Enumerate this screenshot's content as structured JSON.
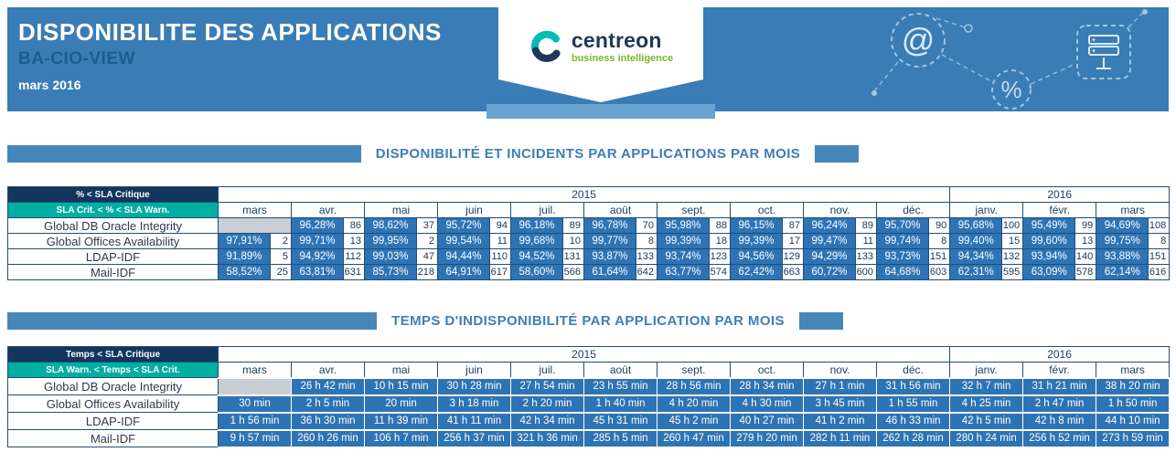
{
  "header": {
    "title": "DISPONIBILITE DES APPLICATIONS",
    "subtitle": "BA-CIO-VIEW",
    "period": "mars 2016",
    "logo": {
      "name": "centreon",
      "tagline": "business intelligence"
    }
  },
  "colors": {
    "header_blue": "#3a7cb5",
    "cell_blue": "#2e74b5",
    "legend_navy": "#14365e",
    "legend_teal": "#00afa2",
    "tagline_green": "#79b72d",
    "empty_gray": "#c9ced4"
  },
  "icons": [
    "at-icon",
    "percent-icon",
    "server-icon"
  ],
  "columns": {
    "years": [
      {
        "label": "2015",
        "months": [
          "mars",
          "avr.",
          "mai",
          "juin",
          "juil.",
          "août",
          "sept.",
          "oct.",
          "nov.",
          "déc."
        ]
      },
      {
        "label": "2016",
        "months": [
          "janv.",
          "févr.",
          "mars"
        ]
      }
    ]
  },
  "availability": {
    "section_title": "DISPONIBILITÉ ET INCIDENTS PAR APPLICATIONS PAR MOIS",
    "legend_critical": "% < SLA Critique",
    "legend_warning": "SLA Crit. < % < SLA Warn.",
    "rows": [
      {
        "label": "Global DB Oracle Integrity",
        "cells": [
          null,
          {
            "pct": "96,28%",
            "count": "86"
          },
          {
            "pct": "98,62%",
            "count": "37"
          },
          {
            "pct": "95,72%",
            "count": "94"
          },
          {
            "pct": "96,18%",
            "count": "89"
          },
          {
            "pct": "96,78%",
            "count": "70"
          },
          {
            "pct": "95,98%",
            "count": "88"
          },
          {
            "pct": "96,15%",
            "count": "87"
          },
          {
            "pct": "96,24%",
            "count": "89"
          },
          {
            "pct": "95,70%",
            "count": "90"
          },
          {
            "pct": "95,68%",
            "count": "100"
          },
          {
            "pct": "95,49%",
            "count": "99"
          },
          {
            "pct": "94,69%",
            "count": "108"
          }
        ]
      },
      {
        "label": "Global Offices Availability",
        "cells": [
          {
            "pct": "97,91%",
            "count": "2"
          },
          {
            "pct": "99,71%",
            "count": "13"
          },
          {
            "pct": "99,95%",
            "count": "2"
          },
          {
            "pct": "99,54%",
            "count": "11"
          },
          {
            "pct": "99,68%",
            "count": "10"
          },
          {
            "pct": "99,77%",
            "count": "8"
          },
          {
            "pct": "99,39%",
            "count": "18"
          },
          {
            "pct": "99,39%",
            "count": "17"
          },
          {
            "pct": "99,47%",
            "count": "11"
          },
          {
            "pct": "99,74%",
            "count": "8"
          },
          {
            "pct": "99,40%",
            "count": "15"
          },
          {
            "pct": "99,60%",
            "count": "13"
          },
          {
            "pct": "99,75%",
            "count": "8"
          }
        ]
      },
      {
        "label": "LDAP-IDF",
        "cells": [
          {
            "pct": "91,89%",
            "count": "5"
          },
          {
            "pct": "94,92%",
            "count": "112"
          },
          {
            "pct": "99,03%",
            "count": "47"
          },
          {
            "pct": "94,44%",
            "count": "110"
          },
          {
            "pct": "94,52%",
            "count": "131"
          },
          {
            "pct": "93,87%",
            "count": "133"
          },
          {
            "pct": "93,74%",
            "count": "123"
          },
          {
            "pct": "94,56%",
            "count": "129"
          },
          {
            "pct": "94,29%",
            "count": "133"
          },
          {
            "pct": "93,73%",
            "count": "151"
          },
          {
            "pct": "94,34%",
            "count": "132"
          },
          {
            "pct": "93,94%",
            "count": "140"
          },
          {
            "pct": "93,88%",
            "count": "151"
          }
        ]
      },
      {
        "label": "Mail-IDF",
        "cells": [
          {
            "pct": "58,52%",
            "count": "25"
          },
          {
            "pct": "63,81%",
            "count": "631"
          },
          {
            "pct": "85,73%",
            "count": "218"
          },
          {
            "pct": "64,91%",
            "count": "617"
          },
          {
            "pct": "58,60%",
            "count": "566"
          },
          {
            "pct": "61,64%",
            "count": "642"
          },
          {
            "pct": "63,77%",
            "count": "574"
          },
          {
            "pct": "62,42%",
            "count": "663"
          },
          {
            "pct": "60,72%",
            "count": "600"
          },
          {
            "pct": "64,68%",
            "count": "603"
          },
          {
            "pct": "62,31%",
            "count": "595"
          },
          {
            "pct": "63,09%",
            "count": "578"
          },
          {
            "pct": "62,14%",
            "count": "616"
          }
        ]
      }
    ]
  },
  "downtime": {
    "section_title": "TEMPS D'INDISPONIBILITÉ PAR APPLICATION PAR MOIS",
    "legend_critical": "Temps < SLA Critique",
    "legend_warning": "SLA Warn. < Temps < SLA Crit.",
    "rows": [
      {
        "label": "Global DB Oracle Integrity",
        "cells": [
          null,
          "26 h 42 min",
          "10 h 15 min",
          "30 h 28 min",
          "27 h 54 min",
          "23 h 55 min",
          "28 h 56 min",
          "28 h 34 min",
          "27 h 1 min",
          "31 h 56 min",
          "32 h 7 min",
          "31 h 21 min",
          "38 h 20 min"
        ]
      },
      {
        "label": "Global Offices Availability",
        "cells": [
          "30 min",
          "2 h 5 min",
          "20 min",
          "3 h 18 min",
          "2 h 20 min",
          "1 h 40 min",
          "4 h 20 min",
          "4 h 30 min",
          "3 h 45 min",
          "1 h 55 min",
          "4 h 25 min",
          "2 h 47 min",
          "1 h 50 min"
        ]
      },
      {
        "label": "LDAP-IDF",
        "cells": [
          "1 h 56 min",
          "36 h 30 min",
          "11 h 39 min",
          "41 h 11 min",
          "42 h 34 min",
          "45 h 31 min",
          "45 h 2 min",
          "40 h 27 min",
          "41 h 2 min",
          "46 h 33 min",
          "42 h 5 min",
          "42 h 8 min",
          "44 h 10 min"
        ]
      },
      {
        "label": "Mail-IDF",
        "cells": [
          "9 h 57 min",
          "260 h 26 min",
          "106 h 7 min",
          "256 h 37 min",
          "321 h 36 min",
          "285 h 5 min",
          "260 h 47 min",
          "279 h 20 min",
          "282 h 11 min",
          "262 h 28 min",
          "280 h 24 min",
          "256 h 52 min",
          "273 h 59 min"
        ]
      }
    ]
  }
}
